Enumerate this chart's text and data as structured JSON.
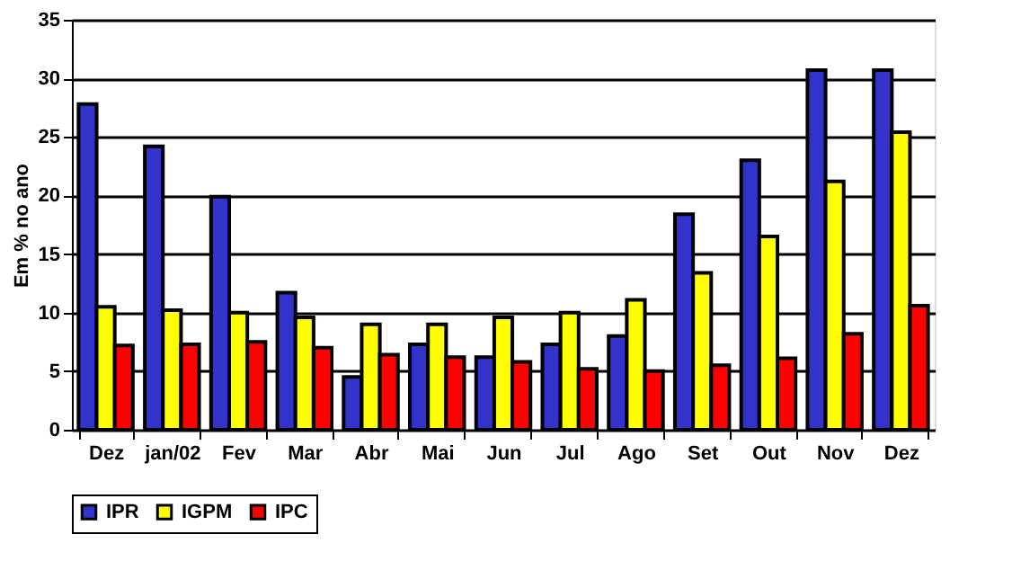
{
  "chart_data": {
    "type": "bar",
    "ylabel": "Em % no ano",
    "categories": [
      "Dez",
      "jan/02",
      "Fev",
      "Mar",
      "Abr",
      "Mai",
      "Jun",
      "Jul",
      "Ago",
      "Set",
      "Out",
      "Nov",
      "Dez"
    ],
    "series": [
      {
        "name": "IPR",
        "color": "#3333cc",
        "values": [
          27.8,
          24.2,
          19.9,
          11.7,
          4.5,
          7.3,
          6.2,
          7.3,
          8.0,
          18.4,
          23.0,
          30.7,
          30.7
        ]
      },
      {
        "name": "IGPM",
        "color": "#ffff00",
        "values": [
          10.5,
          10.2,
          10.0,
          9.6,
          9.0,
          9.0,
          9.6,
          10.0,
          11.1,
          13.4,
          16.5,
          21.2,
          25.4
        ]
      },
      {
        "name": "IPC",
        "color": "#ff0000",
        "values": [
          7.2,
          7.3,
          7.5,
          7.0,
          6.4,
          6.2,
          5.8,
          5.2,
          5.0,
          5.5,
          6.1,
          8.2,
          10.6
        ]
      }
    ],
    "ylim": [
      0,
      35
    ],
    "yticks": [
      0,
      5,
      10,
      15,
      20,
      25,
      30,
      35
    ],
    "grid": "y",
    "legend": "bottom"
  }
}
